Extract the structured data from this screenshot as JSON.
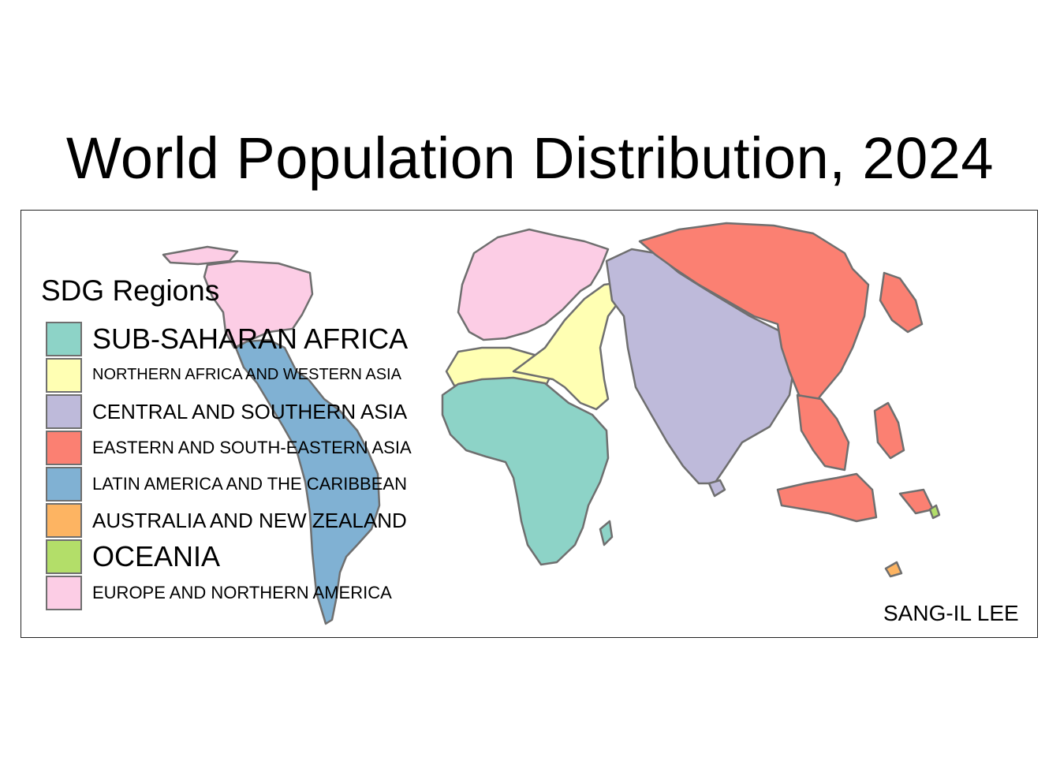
{
  "title": "World Population Distribution, 2024",
  "legend": {
    "title": "SDG Regions",
    "items": [
      {
        "label": "SUB-SAHARAN AFRICA",
        "color": "#8DD3C7"
      },
      {
        "label": "NORTHERN AFRICA AND WESTERN ASIA",
        "color": "#FFFFB3"
      },
      {
        "label": "CENTRAL AND SOUTHERN ASIA",
        "color": "#BEBADA"
      },
      {
        "label": "EASTERN AND SOUTH-EASTERN ASIA",
        "color": "#FB8072"
      },
      {
        "label": "LATIN AMERICA AND THE CARIBBEAN",
        "color": "#80B1D3"
      },
      {
        "label": "AUSTRALIA AND NEW ZEALAND",
        "color": "#FDB462"
      },
      {
        "label": "OCEANIA",
        "color": "#B3DE69"
      },
      {
        "label": "EUROPE AND NORTHERN AMERICA",
        "color": "#FCCDE5"
      }
    ]
  },
  "credit": "SANG-IL LEE",
  "border_color": "#6f6f6f"
}
